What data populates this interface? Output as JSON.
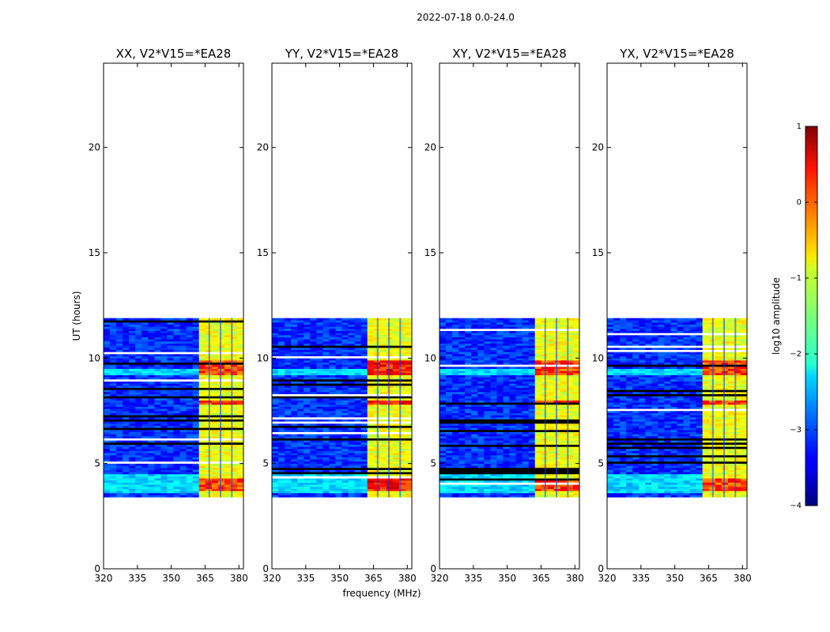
{
  "chart_data": {
    "type": "heatmap",
    "suptitle": "2022-07-18 0.0-24.0",
    "xlabel": "frequency (MHz)",
    "ylabel": "UT (hours)",
    "xlim": [
      320,
      382
    ],
    "ylim": [
      0,
      24
    ],
    "xticks": [
      "320",
      "335",
      "350",
      "365",
      "380"
    ],
    "yticks": [
      "0",
      "5",
      "10",
      "15",
      "20"
    ],
    "data_window_hours": [
      3.4,
      11.9
    ],
    "strong_band_mhz": [
      362,
      381
    ],
    "colorbar": {
      "label": "log10 amplitude",
      "range": [
        -4,
        1
      ],
      "ticks": [
        "1",
        "0",
        "−1",
        "−2",
        "−3",
        "−4"
      ]
    },
    "panels": [
      {
        "title": "XX, V2*V15=*EA28"
      },
      {
        "title": "YY, V2*V15=*EA28"
      },
      {
        "title": "XY, V2*V15=*EA28"
      },
      {
        "title": "YX, V2*V15=*EA28"
      }
    ]
  }
}
